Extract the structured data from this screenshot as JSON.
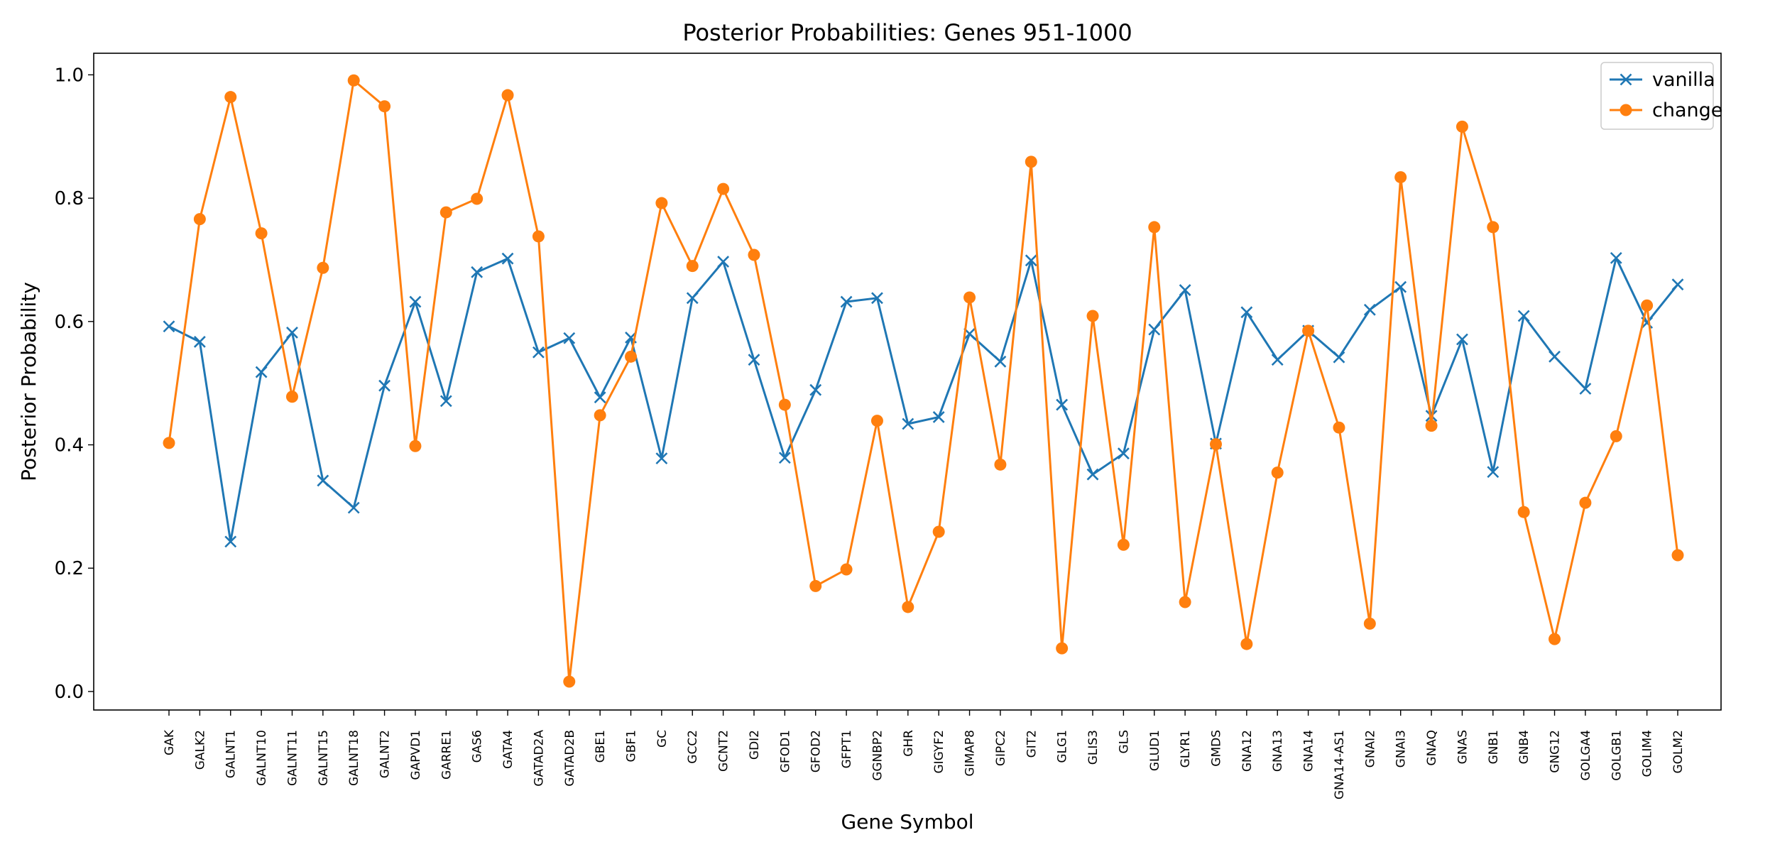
{
  "chart_data": {
    "type": "line",
    "title": "Posterior Probabilities: Genes 951-1000",
    "xlabel": "Gene Symbol",
    "ylabel": "Posterior Probability",
    "ylim": [
      -0.03,
      1.035
    ],
    "yticks": [
      "0.0",
      "0.2",
      "0.4",
      "0.6",
      "0.8",
      "1.0"
    ],
    "ytick_values": [
      0.0,
      0.2,
      0.4,
      0.6,
      0.8,
      1.0
    ],
    "legend_position": "top-right",
    "grid": false,
    "categories": [
      "GAK",
      "GALK2",
      "GALNT1",
      "GALNT10",
      "GALNT11",
      "GALNT15",
      "GALNT18",
      "GALNT2",
      "GAPVD1",
      "GARRE1",
      "GAS6",
      "GATA4",
      "GATAD2A",
      "GATAD2B",
      "GBE1",
      "GBF1",
      "GC",
      "GCC2",
      "GCNT2",
      "GDI2",
      "GFOD1",
      "GFOD2",
      "GFPT1",
      "GGNBP2",
      "GHR",
      "GIGYF2",
      "GIMAP8",
      "GIPC2",
      "GIT2",
      "GLG1",
      "GLIS3",
      "GLS",
      "GLUD1",
      "GLYR1",
      "GMDS",
      "GNA12",
      "GNA13",
      "GNA14",
      "GNA14-AS1",
      "GNAI2",
      "GNAI3",
      "GNAQ",
      "GNAS",
      "GNB1",
      "GNB4",
      "GNG12",
      "GOLGA4",
      "GOLGB1",
      "GOLIM4",
      "GOLM2"
    ],
    "series": [
      {
        "name": "vanilla",
        "color": "#1f77b4",
        "marker": "x",
        "values": [
          0.592,
          0.567,
          0.243,
          0.518,
          0.582,
          0.342,
          0.298,
          0.496,
          0.632,
          0.471,
          0.68,
          0.702,
          0.55,
          0.573,
          0.477,
          0.574,
          0.378,
          0.638,
          0.697,
          0.538,
          0.379,
          0.489,
          0.632,
          0.638,
          0.434,
          0.445,
          0.58,
          0.535,
          0.699,
          0.465,
          0.352,
          0.386,
          0.587,
          0.651,
          0.402,
          0.615,
          0.538,
          0.585,
          0.542,
          0.619,
          0.656,
          0.447,
          0.571,
          0.356,
          0.609,
          0.543,
          0.491,
          0.703,
          0.598,
          0.66
        ]
      },
      {
        "name": "change",
        "color": "#ff7f0e",
        "marker": "o",
        "values": [
          0.403,
          0.766,
          0.964,
          0.743,
          0.478,
          0.687,
          0.991,
          0.949,
          0.398,
          0.777,
          0.799,
          0.967,
          0.738,
          0.016,
          0.448,
          0.543,
          0.792,
          0.69,
          0.815,
          0.708,
          0.465,
          0.171,
          0.198,
          0.439,
          0.137,
          0.259,
          0.639,
          0.368,
          0.859,
          0.07,
          0.609,
          0.238,
          0.753,
          0.145,
          0.401,
          0.077,
          0.355,
          0.585,
          0.428,
          0.11,
          0.834,
          0.431,
          0.916,
          0.753,
          0.291,
          0.085,
          0.306,
          0.414,
          0.626,
          0.221
        ]
      }
    ]
  }
}
